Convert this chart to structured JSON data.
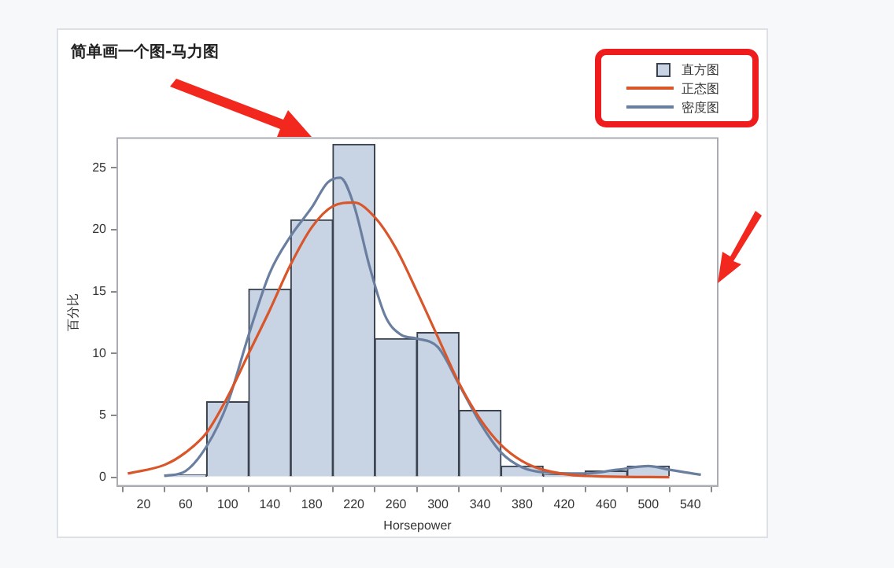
{
  "chart_data": {
    "type": "histogram",
    "title": "简单画一个图-马力图",
    "xlabel": "Horsepower",
    "ylabel": "百分比",
    "legend": "top right",
    "xlim": [
      -5,
      566
    ],
    "xticks": [
      20,
      60,
      100,
      140,
      180,
      220,
      260,
      300,
      340,
      380,
      420,
      460,
      500,
      540
    ],
    "ylim": [
      -0.7,
      27.4
    ],
    "yticks": [
      0,
      5,
      10,
      15,
      20,
      25
    ],
    "grid": false,
    "series": [
      {
        "name": "直方图",
        "color": "#c8d3e3",
        "bins": [
          40,
          80,
          120,
          160,
          200,
          240,
          280,
          320,
          360,
          400,
          440,
          480,
          520
        ],
        "values": [
          0.2,
          6.1,
          15.2,
          20.8,
          26.9,
          11.2,
          11.7,
          5.4,
          0.9,
          0.2,
          0.5,
          0.9
        ]
      },
      {
        "name": "正态图",
        "type": "line",
        "color": "#d9562b",
        "x": [
          5,
          40,
          60,
          80,
          100,
          120,
          140,
          160,
          180,
          200,
          220,
          240,
          260,
          280,
          300,
          320,
          340,
          360,
          380,
          400,
          440,
          520
        ],
        "values": [
          0.3,
          1.0,
          2.0,
          3.6,
          6.5,
          10,
          13.5,
          17.2,
          20.2,
          21.9,
          22.2,
          21,
          18.5,
          15,
          11.3,
          7.6,
          4.7,
          2.6,
          1.3,
          0.6,
          0.1,
          0
        ]
      },
      {
        "name": "密度图",
        "type": "line",
        "color": "#6a7fa0",
        "x": [
          40,
          60,
          80,
          100,
          120,
          140,
          160,
          180,
          195,
          207,
          220,
          235,
          250,
          265,
          280,
          300,
          320,
          340,
          360,
          380,
          400,
          440,
          470,
          500,
          520,
          550
        ],
        "values": [
          0.1,
          0.5,
          2.5,
          6,
          11.5,
          16.5,
          19.5,
          21.8,
          23.8,
          24.2,
          22,
          17,
          13,
          11.5,
          11.2,
          10.5,
          7.5,
          4.4,
          2,
          0.8,
          0.4,
          0.3,
          0.6,
          0.9,
          0.6,
          0.2
        ]
      }
    ]
  }
}
